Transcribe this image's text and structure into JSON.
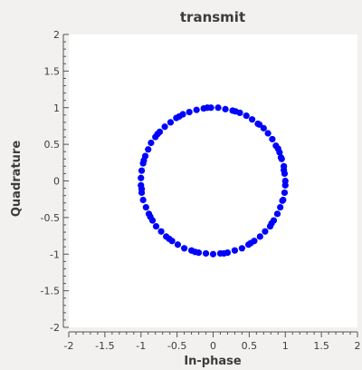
{
  "chart_data": {
    "type": "scatter",
    "title": "transmit",
    "xlabel": "In-phase",
    "ylabel": "Quadrature",
    "xlim": [
      -2,
      2
    ],
    "ylim": [
      -2,
      2
    ],
    "xticks": [
      "-2",
      "-1.5",
      "-1",
      "-0.5",
      "0",
      "0.5",
      "1",
      "1.5",
      "2"
    ],
    "yticks": [
      "-2",
      "-1.5",
      "-1",
      "-0.5",
      "0",
      "0.5",
      "1",
      "1.5",
      "2"
    ],
    "grid": false,
    "marker_color": "#0000ff",
    "series": [
      {
        "points": [
          [
            1.0,
            0.0
          ],
          [
            0.99,
            0.1
          ],
          [
            0.98,
            0.2
          ],
          [
            0.95,
            0.3
          ],
          [
            0.92,
            0.39
          ],
          [
            0.87,
            0.48
          ],
          [
            0.82,
            0.57
          ],
          [
            0.76,
            0.65
          ],
          [
            0.7,
            0.72
          ],
          [
            0.62,
            0.78
          ],
          [
            0.54,
            0.84
          ],
          [
            0.46,
            0.89
          ],
          [
            0.37,
            0.93
          ],
          [
            0.27,
            0.96
          ],
          [
            0.17,
            0.98
          ],
          [
            0.07,
            1.0
          ],
          [
            -0.03,
            1.0
          ],
          [
            -0.13,
            0.99
          ],
          [
            -0.23,
            0.97
          ],
          [
            -0.33,
            0.94
          ],
          [
            -0.42,
            0.91
          ],
          [
            -0.51,
            0.86
          ],
          [
            -0.59,
            0.8
          ],
          [
            -0.67,
            0.74
          ],
          [
            -0.74,
            0.67
          ],
          [
            -0.8,
            0.6
          ],
          [
            -0.86,
            0.52
          ],
          [
            -0.9,
            0.43
          ],
          [
            -0.94,
            0.34
          ],
          [
            -0.97,
            0.24
          ],
          [
            -0.99,
            0.14
          ],
          [
            -1.0,
            0.04
          ],
          [
            -1.0,
            -0.06
          ],
          [
            -0.99,
            -0.16
          ],
          [
            -0.97,
            -0.26
          ],
          [
            -0.93,
            -0.36
          ],
          [
            -0.89,
            -0.45
          ],
          [
            -0.84,
            -0.54
          ],
          [
            -0.79,
            -0.62
          ],
          [
            -0.72,
            -0.69
          ],
          [
            -0.65,
            -0.76
          ],
          [
            -0.57,
            -0.82
          ],
          [
            -0.49,
            -0.87
          ],
          [
            -0.4,
            -0.92
          ],
          [
            -0.3,
            -0.95
          ],
          [
            -0.2,
            -0.98
          ],
          [
            -0.1,
            -0.99
          ],
          [
            0.0,
            -1.0
          ],
          [
            0.1,
            -0.99
          ],
          [
            0.2,
            -0.98
          ],
          [
            0.3,
            -0.95
          ],
          [
            0.4,
            -0.92
          ],
          [
            0.49,
            -0.87
          ],
          [
            0.57,
            -0.82
          ],
          [
            0.65,
            -0.76
          ],
          [
            0.72,
            -0.69
          ],
          [
            0.79,
            -0.62
          ],
          [
            0.84,
            -0.54
          ],
          [
            0.89,
            -0.45
          ],
          [
            0.93,
            -0.36
          ],
          [
            0.97,
            -0.26
          ],
          [
            0.99,
            -0.16
          ],
          [
            1.0,
            -0.06
          ],
          [
            0.98,
            0.15
          ],
          [
            0.9,
            0.44
          ],
          [
            0.64,
            0.77
          ],
          [
            0.31,
            0.95
          ],
          [
            -0.08,
            1.0
          ],
          [
            -0.47,
            0.88
          ],
          [
            -0.77,
            0.64
          ],
          [
            -0.96,
            0.28
          ],
          [
            -0.99,
            -0.11
          ],
          [
            -0.87,
            -0.49
          ],
          [
            -0.61,
            -0.79
          ],
          [
            -0.25,
            -0.97
          ],
          [
            0.15,
            -0.99
          ],
          [
            0.52,
            -0.85
          ],
          [
            0.81,
            -0.58
          ],
          [
            0.96,
            -0.27
          ],
          [
            0.94,
            0.32
          ]
        ]
      }
    ]
  }
}
